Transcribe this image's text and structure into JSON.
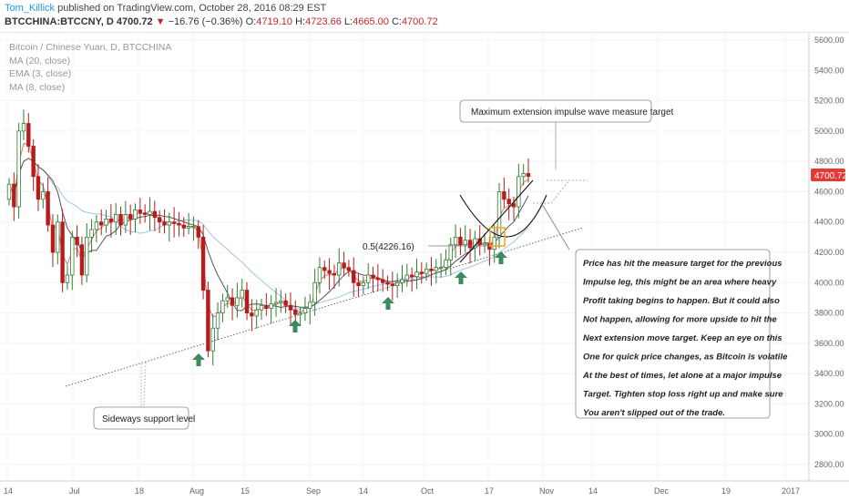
{
  "header": {
    "author": "Tom_Killick",
    "published_text": "published on TradingView.com, October 28, 2016 08:29 EST",
    "symbol": "BTCCHINA:BTCCNY, D",
    "last": "4700.72",
    "change_arrow": "▼",
    "change": "−16.76 (−0.36%)",
    "o_label": "O:",
    "o_value": "4719.10",
    "h_label": "H:",
    "h_value": "4723.66",
    "l_label": "L:",
    "l_value": "4665.00",
    "c_label": "C:",
    "c_value": "4700.72"
  },
  "legend": {
    "title": "Bitcoin / Chinese Yuan, D, BTCCHINA",
    "ma20": "MA (20, close)",
    "ema3": "EMA (3, close)",
    "ma8": "MA (8, close)"
  },
  "annotations": {
    "target_box": "Maximum extension impulse wave measure target",
    "fib_label": "0.5(4226.16)",
    "support_box": "Sideways support level",
    "comment_lines": [
      "Price has hit the measure target for the previous",
      "Impulse leg, this might be an area where heavy",
      "Profit taking begins to happen. But it could also",
      "Not happen, allowing for more upside to hit the",
      "Next extension move target. Keep an eye on this",
      "One for quick price changes, as Bitcoin is volatile",
      "At the best of times, let alone at a major impulse",
      "Target. Tighten stop loss right up and make sure",
      "You aren't slipped out of the trade."
    ]
  },
  "price_tag": "4700.72",
  "colors": {
    "up": "#2e7d32",
    "down": "#b71c1c",
    "accent": "#2196f3",
    "price_tag": "#e53935",
    "arrow": "#3c8a5e",
    "highlight": "#f5a623"
  },
  "chart_data": {
    "type": "candlestick",
    "y_axis": {
      "min": 2600,
      "max": 5600,
      "ticks": [
        "5600.00",
        "5400.00",
        "5200.00",
        "5000.00",
        "4800.00",
        "4600.00",
        "4400.00",
        "4200.00",
        "4000.00",
        "3800.00",
        "3600.00",
        "3400.00",
        "3200.00",
        "3000.00",
        "2800.00"
      ]
    },
    "x_axis": {
      "ticks": [
        "14",
        "Jul",
        "18",
        "Aug",
        "15",
        "Sep",
        "14",
        "Oct",
        "17",
        "Nov",
        "14",
        "Dec",
        "19",
        "2017"
      ]
    },
    "close_series": [
      4650,
      4500,
      5000,
      5050,
      4900,
      4700,
      4550,
      4600,
      4380,
      4200,
      4400,
      4000,
      4050,
      4300,
      4250,
      4050,
      4300,
      4350,
      4400,
      4380,
      4420,
      4400,
      4450,
      4380,
      4450,
      4420,
      4480,
      4460,
      4450,
      4470,
      4430,
      4400,
      4380,
      4400,
      4390,
      4380,
      4360,
      4370,
      4370,
      4300,
      3950,
      3550,
      3700,
      3800,
      3880,
      3900,
      3850,
      3900,
      3950,
      3800,
      3780,
      3820,
      3850,
      3830,
      3860,
      3870,
      3880,
      3850,
      3820,
      3790,
      3800,
      3830,
      3870,
      4000,
      4100,
      4080,
      4060,
      4050,
      4130,
      4100,
      4080,
      4000,
      3980,
      4000,
      4050,
      4030,
      4020,
      4000,
      3990,
      3980,
      4000,
      4020,
      4050,
      4040,
      4070,
      4060,
      4090,
      4080,
      4100,
      4100,
      4150,
      4250,
      4300,
      4250,
      4280,
      4230,
      4290,
      4250,
      4260,
      4220,
      4300,
      4600,
      4550,
      4520,
      4500,
      4700,
      4720,
      4700.72
    ]
  },
  "series_names": [
    "MA (20, close)",
    "EMA (3, close)",
    "MA (8, close)"
  ]
}
